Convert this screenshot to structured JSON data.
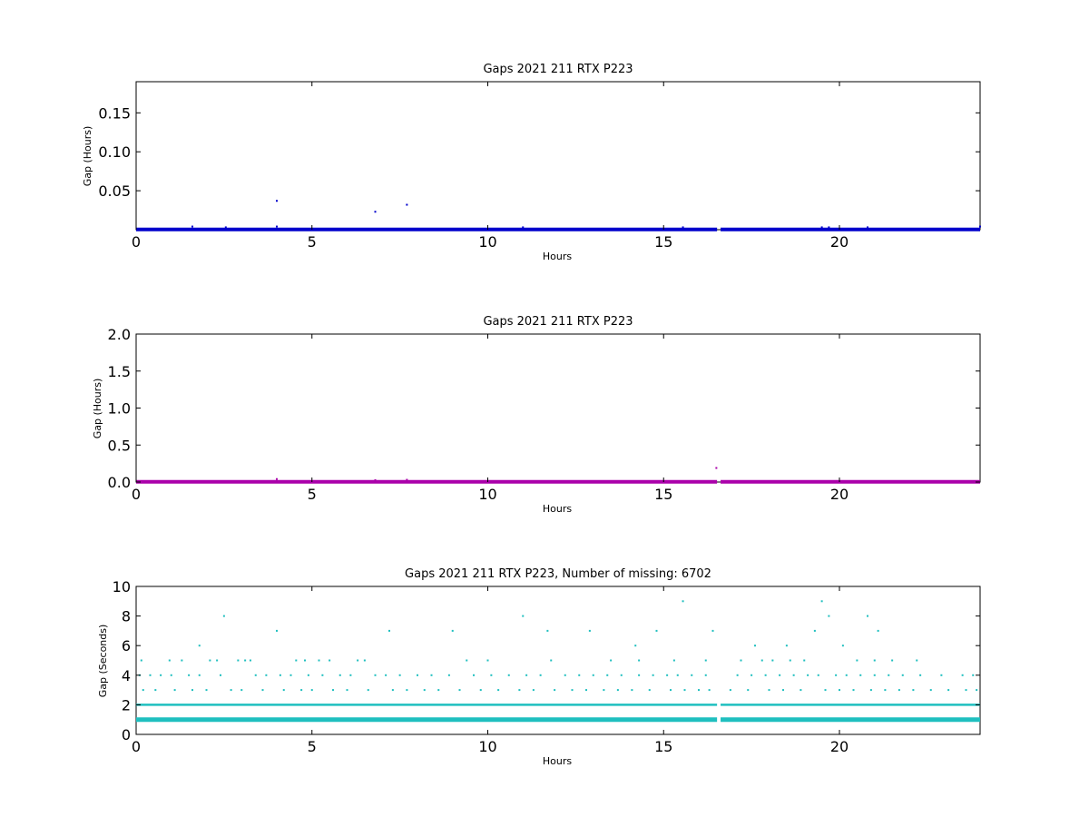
{
  "chart_data": [
    {
      "type": "scatter",
      "title": "Gaps 2021 211 RTX  P223",
      "xlabel": "Hours",
      "ylabel": "Gap (Hours)",
      "xlim": [
        0,
        24
      ],
      "ylim": [
        0,
        0.19
      ],
      "xticks": [
        "0",
        "5",
        "10",
        "15",
        "20"
      ],
      "yticks": [
        "0.05",
        "0.10",
        "0.15"
      ],
      "ytick_values": [
        0.05,
        0.1,
        0.15
      ],
      "color": "#0000cc",
      "grid": false,
      "baseline": {
        "y": 0.0003,
        "x_start": 0,
        "x_end": 24,
        "break": [
          16.52,
          16.62
        ]
      },
      "points": [
        {
          "x": 4.0,
          "y": 0.037
        },
        {
          "x": 6.8,
          "y": 0.023
        },
        {
          "x": 7.7,
          "y": 0.032
        },
        {
          "x": 1.6,
          "y": 0.004
        },
        {
          "x": 2.55,
          "y": 0.003
        },
        {
          "x": 4.0,
          "y": 0.004
        },
        {
          "x": 11.0,
          "y": 0.003
        },
        {
          "x": 15.55,
          "y": 0.003
        },
        {
          "x": 19.5,
          "y": 0.003
        },
        {
          "x": 19.7,
          "y": 0.003
        },
        {
          "x": 20.8,
          "y": 0.003
        },
        {
          "x": 24.0,
          "y": 0.004
        }
      ]
    },
    {
      "type": "scatter",
      "title": "Gaps 2021 211 RTX  P223",
      "xlabel": "Hours",
      "ylabel": "Gap (Hours)",
      "xlim": [
        0,
        24
      ],
      "ylim": [
        0,
        2
      ],
      "xticks": [
        "0",
        "5",
        "10",
        "15",
        "20"
      ],
      "yticks": [
        "0.0",
        "0.5",
        "1.0",
        "1.5",
        "2.0"
      ],
      "ytick_values": [
        0,
        0.5,
        1.0,
        1.5,
        2.0
      ],
      "color": "#aa00aa",
      "grid": false,
      "baseline": {
        "y": 0.003,
        "x_start": 0,
        "x_end": 24,
        "break": [
          16.52,
          16.62
        ]
      },
      "points": [
        {
          "x": 16.5,
          "y": 0.19
        },
        {
          "x": 4.0,
          "y": 0.04
        },
        {
          "x": 6.8,
          "y": 0.025
        },
        {
          "x": 7.7,
          "y": 0.03
        }
      ]
    },
    {
      "type": "scatter",
      "title": "Gaps 2021 211 RTX  P223, Number of missing: 6702",
      "xlabel": "Hours",
      "ylabel": "Gap (Seconds)",
      "xlim": [
        0,
        24
      ],
      "ylim": [
        0,
        10
      ],
      "xticks": [
        "0",
        "5",
        "10",
        "15",
        "20"
      ],
      "yticks": [
        "0",
        "2",
        "4",
        "6",
        "8",
        "10"
      ],
      "ytick_values": [
        0,
        2,
        4,
        6,
        8,
        10
      ],
      "color": "#1fbfbf",
      "grid": false,
      "lines": [
        {
          "y": 1,
          "x_start": 0,
          "x_end": 24,
          "break": [
            16.52,
            16.62
          ]
        },
        {
          "y": 2,
          "x_start": 0,
          "x_end": 24,
          "break": [
            16.52,
            16.62
          ]
        }
      ],
      "points": [
        {
          "x": 2.5,
          "y": 8
        },
        {
          "x": 11.0,
          "y": 8
        },
        {
          "x": 20.8,
          "y": 8
        },
        {
          "x": 19.7,
          "y": 8
        },
        {
          "x": 15.55,
          "y": 9
        },
        {
          "x": 19.5,
          "y": 9
        },
        {
          "x": 4.0,
          "y": 7
        },
        {
          "x": 7.2,
          "y": 7
        },
        {
          "x": 9.0,
          "y": 7
        },
        {
          "x": 11.7,
          "y": 7
        },
        {
          "x": 12.9,
          "y": 7
        },
        {
          "x": 14.8,
          "y": 7
        },
        {
          "x": 16.4,
          "y": 7
        },
        {
          "x": 19.3,
          "y": 7
        },
        {
          "x": 21.1,
          "y": 7
        },
        {
          "x": 1.8,
          "y": 6
        },
        {
          "x": 14.2,
          "y": 6
        },
        {
          "x": 17.6,
          "y": 6
        },
        {
          "x": 18.5,
          "y": 6
        },
        {
          "x": 20.1,
          "y": 6
        },
        {
          "x": 0.15,
          "y": 5
        },
        {
          "x": 0.95,
          "y": 5
        },
        {
          "x": 1.3,
          "y": 5
        },
        {
          "x": 2.1,
          "y": 5
        },
        {
          "x": 2.3,
          "y": 5
        },
        {
          "x": 2.9,
          "y": 5
        },
        {
          "x": 3.1,
          "y": 5
        },
        {
          "x": 3.25,
          "y": 5
        },
        {
          "x": 4.55,
          "y": 5
        },
        {
          "x": 4.8,
          "y": 5
        },
        {
          "x": 5.2,
          "y": 5
        },
        {
          "x": 5.5,
          "y": 5
        },
        {
          "x": 6.3,
          "y": 5
        },
        {
          "x": 6.5,
          "y": 5
        },
        {
          "x": 9.4,
          "y": 5
        },
        {
          "x": 10.0,
          "y": 5
        },
        {
          "x": 11.8,
          "y": 5
        },
        {
          "x": 13.5,
          "y": 5
        },
        {
          "x": 14.3,
          "y": 5
        },
        {
          "x": 15.3,
          "y": 5
        },
        {
          "x": 16.2,
          "y": 5
        },
        {
          "x": 17.2,
          "y": 5
        },
        {
          "x": 17.8,
          "y": 5
        },
        {
          "x": 18.1,
          "y": 5
        },
        {
          "x": 18.6,
          "y": 5
        },
        {
          "x": 19.0,
          "y": 5
        },
        {
          "x": 20.5,
          "y": 5
        },
        {
          "x": 21.0,
          "y": 5
        },
        {
          "x": 21.5,
          "y": 5
        },
        {
          "x": 22.2,
          "y": 5
        },
        {
          "x": 0.1,
          "y": 4
        },
        {
          "x": 0.4,
          "y": 4
        },
        {
          "x": 0.7,
          "y": 4
        },
        {
          "x": 1.0,
          "y": 4
        },
        {
          "x": 1.5,
          "y": 4
        },
        {
          "x": 1.8,
          "y": 4
        },
        {
          "x": 2.4,
          "y": 4
        },
        {
          "x": 3.4,
          "y": 4
        },
        {
          "x": 3.7,
          "y": 4
        },
        {
          "x": 4.1,
          "y": 4
        },
        {
          "x": 4.4,
          "y": 4
        },
        {
          "x": 4.9,
          "y": 4
        },
        {
          "x": 5.3,
          "y": 4
        },
        {
          "x": 5.8,
          "y": 4
        },
        {
          "x": 6.1,
          "y": 4
        },
        {
          "x": 6.8,
          "y": 4
        },
        {
          "x": 7.1,
          "y": 4
        },
        {
          "x": 7.5,
          "y": 4
        },
        {
          "x": 8.0,
          "y": 4
        },
        {
          "x": 8.4,
          "y": 4
        },
        {
          "x": 8.9,
          "y": 4
        },
        {
          "x": 9.6,
          "y": 4
        },
        {
          "x": 10.1,
          "y": 4
        },
        {
          "x": 10.6,
          "y": 4
        },
        {
          "x": 11.1,
          "y": 4
        },
        {
          "x": 11.5,
          "y": 4
        },
        {
          "x": 12.2,
          "y": 4
        },
        {
          "x": 12.6,
          "y": 4
        },
        {
          "x": 13.0,
          "y": 4
        },
        {
          "x": 13.4,
          "y": 4
        },
        {
          "x": 13.8,
          "y": 4
        },
        {
          "x": 14.3,
          "y": 4
        },
        {
          "x": 14.7,
          "y": 4
        },
        {
          "x": 15.1,
          "y": 4
        },
        {
          "x": 15.4,
          "y": 4
        },
        {
          "x": 15.8,
          "y": 4
        },
        {
          "x": 16.2,
          "y": 4
        },
        {
          "x": 17.1,
          "y": 4
        },
        {
          "x": 17.5,
          "y": 4
        },
        {
          "x": 17.9,
          "y": 4
        },
        {
          "x": 18.3,
          "y": 4
        },
        {
          "x": 18.7,
          "y": 4
        },
        {
          "x": 19.1,
          "y": 4
        },
        {
          "x": 19.4,
          "y": 4
        },
        {
          "x": 19.9,
          "y": 4
        },
        {
          "x": 20.2,
          "y": 4
        },
        {
          "x": 20.6,
          "y": 4
        },
        {
          "x": 21.0,
          "y": 4
        },
        {
          "x": 21.4,
          "y": 4
        },
        {
          "x": 21.8,
          "y": 4
        },
        {
          "x": 22.3,
          "y": 4
        },
        {
          "x": 22.9,
          "y": 4
        },
        {
          "x": 23.5,
          "y": 4
        },
        {
          "x": 23.8,
          "y": 4
        },
        {
          "x": 0.2,
          "y": 3
        },
        {
          "x": 0.55,
          "y": 3
        },
        {
          "x": 1.1,
          "y": 3
        },
        {
          "x": 1.6,
          "y": 3
        },
        {
          "x": 2.0,
          "y": 3
        },
        {
          "x": 2.7,
          "y": 3
        },
        {
          "x": 3.0,
          "y": 3
        },
        {
          "x": 3.6,
          "y": 3
        },
        {
          "x": 4.2,
          "y": 3
        },
        {
          "x": 4.7,
          "y": 3
        },
        {
          "x": 5.0,
          "y": 3
        },
        {
          "x": 5.6,
          "y": 3
        },
        {
          "x": 6.0,
          "y": 3
        },
        {
          "x": 6.6,
          "y": 3
        },
        {
          "x": 7.3,
          "y": 3
        },
        {
          "x": 7.7,
          "y": 3
        },
        {
          "x": 8.2,
          "y": 3
        },
        {
          "x": 8.6,
          "y": 3
        },
        {
          "x": 9.2,
          "y": 3
        },
        {
          "x": 9.8,
          "y": 3
        },
        {
          "x": 10.3,
          "y": 3
        },
        {
          "x": 10.9,
          "y": 3
        },
        {
          "x": 11.3,
          "y": 3
        },
        {
          "x": 11.9,
          "y": 3
        },
        {
          "x": 12.4,
          "y": 3
        },
        {
          "x": 12.8,
          "y": 3
        },
        {
          "x": 13.3,
          "y": 3
        },
        {
          "x": 13.7,
          "y": 3
        },
        {
          "x": 14.1,
          "y": 3
        },
        {
          "x": 14.6,
          "y": 3
        },
        {
          "x": 15.2,
          "y": 3
        },
        {
          "x": 15.6,
          "y": 3
        },
        {
          "x": 16.0,
          "y": 3
        },
        {
          "x": 16.3,
          "y": 3
        },
        {
          "x": 16.9,
          "y": 3
        },
        {
          "x": 17.4,
          "y": 3
        },
        {
          "x": 18.0,
          "y": 3
        },
        {
          "x": 18.4,
          "y": 3
        },
        {
          "x": 18.9,
          "y": 3
        },
        {
          "x": 19.6,
          "y": 3
        },
        {
          "x": 20.0,
          "y": 3
        },
        {
          "x": 20.4,
          "y": 3
        },
        {
          "x": 20.9,
          "y": 3
        },
        {
          "x": 21.3,
          "y": 3
        },
        {
          "x": 21.7,
          "y": 3
        },
        {
          "x": 22.1,
          "y": 3
        },
        {
          "x": 22.6,
          "y": 3
        },
        {
          "x": 23.1,
          "y": 3
        },
        {
          "x": 23.6,
          "y": 3
        },
        {
          "x": 23.9,
          "y": 3
        }
      ]
    }
  ]
}
